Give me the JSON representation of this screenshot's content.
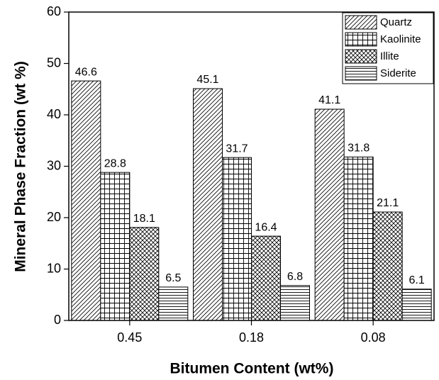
{
  "chart_data": {
    "type": "bar",
    "x_label": "Bitumen Content (wt%)",
    "y_label": "Mineral Phase Fraction (wt %)",
    "categories": [
      "0.45",
      "0.18",
      "0.08"
    ],
    "series": [
      {
        "name": "Quartz",
        "color": "#000000",
        "hatch": "diagonal",
        "values": [
          46.6,
          45.1,
          41.1
        ]
      },
      {
        "name": "Kaolinite",
        "color": "#000000",
        "hatch": "grid",
        "values": [
          28.8,
          31.7,
          31.8
        ]
      },
      {
        "name": "Illite",
        "color": "#000000",
        "hatch": "crosshatch",
        "values": [
          18.1,
          16.4,
          21.1
        ]
      },
      {
        "name": "Siderite",
        "color": "#000000",
        "hatch": "horizontal",
        "values": [
          6.5,
          6.8,
          6.1
        ]
      }
    ],
    "ylim": [
      0,
      60
    ],
    "yticks": [
      0,
      10,
      20,
      30,
      40,
      50,
      60
    ],
    "legend": "top-right",
    "grid": false
  }
}
